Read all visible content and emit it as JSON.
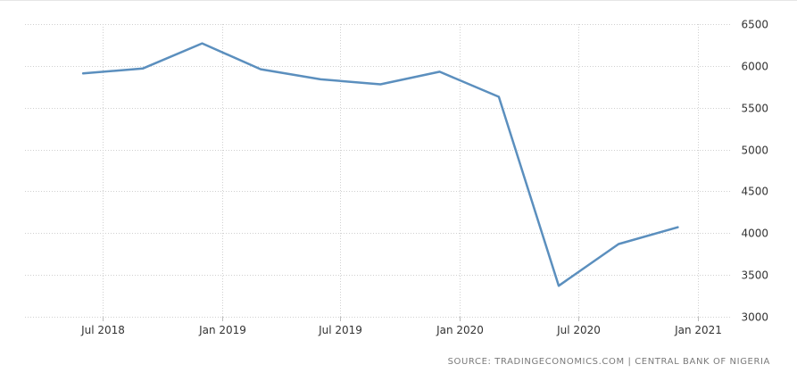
{
  "chart_data": {
    "type": "line",
    "x": [
      "2018-06-01",
      "2018-09-01",
      "2018-12-01",
      "2019-03-01",
      "2019-06-01",
      "2019-09-01",
      "2019-12-01",
      "2020-03-01",
      "2020-06-01",
      "2020-09-01",
      "2020-12-01"
    ],
    "series": [
      {
        "values": [
          5910,
          5970,
          6270,
          5960,
          5840,
          5780,
          5930,
          5630,
          3370,
          3870,
          4070
        ]
      }
    ],
    "x_ticks": [
      "Jul 2018",
      "Jan 2019",
      "Jul 2019",
      "Jan 2020",
      "Jul 2020",
      "Jan 2021"
    ],
    "y_ticks": [
      3000,
      3500,
      4000,
      4500,
      5000,
      5500,
      6000,
      6500
    ],
    "ylim": [
      3000,
      6500
    ],
    "y_axis_position": "right",
    "grid": true,
    "line_color": "#5b8fbe"
  },
  "source": "SOURCE: TRADINGECONOMICS.COM | CENTRAL BANK OF NIGERIA"
}
